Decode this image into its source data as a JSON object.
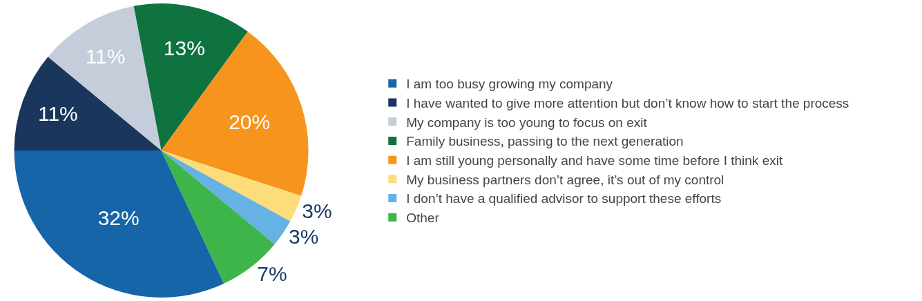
{
  "chart_data": {
    "type": "pie",
    "categories": [
      "I am too busy growing my company",
      "I have wanted to give more attention but don’t know how to start the process",
      "My company is too young to focus on exit",
      "Family business, passing to the next generation",
      "I am still young personally and have some time before I think exit",
      "My business partners don’t agree, it’s out of my control",
      "I don’t have a qualified advisor to support these efforts",
      "Other"
    ],
    "values": [
      32,
      11,
      11,
      13,
      20,
      3,
      3,
      7
    ],
    "value_labels": [
      "32%",
      "11%",
      "11%",
      "13%",
      "20%",
      "3%",
      "3%",
      "7%"
    ],
    "colors": [
      "#1565a8",
      "#1b365d",
      "#c4cdd9",
      "#0f7340",
      "#f7941d",
      "#fddc7a",
      "#66b2e4",
      "#3db54a"
    ],
    "legend": "right"
  }
}
